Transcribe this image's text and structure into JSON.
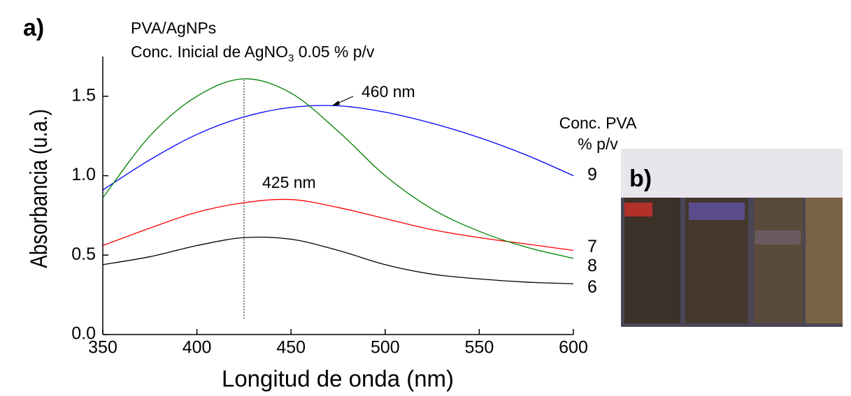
{
  "chart_data": {
    "type": "line",
    "panel_labels": [
      "a)",
      "b)"
    ],
    "title": "PVA/AgNPs",
    "subtitle": [
      "Conc. Inicial de AgNO",
      "3",
      " 0.05 % p/v"
    ],
    "x_label": "Longitud de onda (nm)",
    "y_label": "Absorbancia (u.a.)",
    "legend_title": [
      "Conc. PVA",
      "% p/v"
    ],
    "x": [
      350,
      375,
      400,
      425,
      450,
      475,
      500,
      525,
      550,
      575,
      600
    ],
    "series": [
      {
        "name": "9",
        "color": "#0000ff",
        "values": [
          0.91,
          1.1,
          1.26,
          1.37,
          1.43,
          1.44,
          1.4,
          1.33,
          1.24,
          1.13,
          1.0
        ]
      },
      {
        "name": "7",
        "color": "#ff0000",
        "values": [
          0.56,
          0.67,
          0.77,
          0.83,
          0.85,
          0.8,
          0.73,
          0.66,
          0.61,
          0.57,
          0.53
        ]
      },
      {
        "name": "8",
        "color": "#008000",
        "values": [
          0.86,
          1.25,
          1.5,
          1.61,
          1.52,
          1.28,
          1.0,
          0.79,
          0.65,
          0.55,
          0.48
        ]
      },
      {
        "name": "6",
        "color": "#000000",
        "values": [
          0.44,
          0.49,
          0.56,
          0.61,
          0.6,
          0.53,
          0.44,
          0.38,
          0.35,
          0.33,
          0.32
        ]
      }
    ],
    "annotations": [
      "460 nm",
      "425 nm"
    ],
    "vline": {
      "x": 425,
      "y": [
        0.1,
        1.61
      ]
    },
    "xlim": [
      350,
      600
    ],
    "xticks": [
      350,
      400,
      450,
      500,
      550,
      600
    ],
    "ylim": [
      0,
      1.75
    ],
    "yticks": [
      {
        "value": 0,
        "label": "0.0"
      },
      0.5,
      {
        "value": 1,
        "label": "1.0"
      },
      1.5
    ],
    "grid": false
  }
}
